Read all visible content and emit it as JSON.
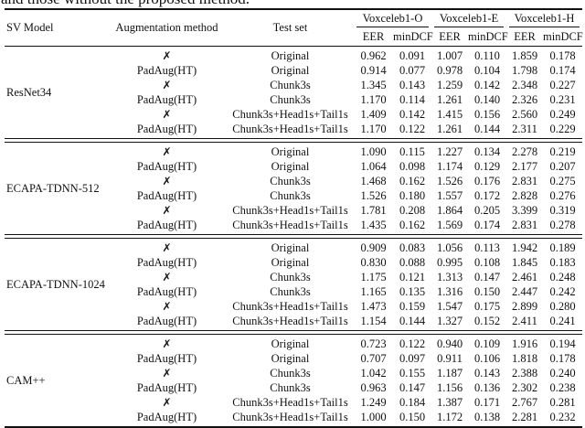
{
  "caption": "and those without the proposed method.",
  "table": {
    "headers": {
      "sv_model": "SV Model",
      "augmentation": "Augmentation method",
      "test_set": "Test set",
      "groups": [
        "Voxceleb1-O",
        "Voxceleb1-E",
        "Voxceleb1-H"
      ],
      "eer_label": "EER",
      "mindcf_label": "minDCF"
    },
    "blocks": [
      {
        "model": "ResNet34",
        "rows": [
          {
            "aug": "✗",
            "test": "Original",
            "eer_o": "0.962",
            "mindcf_o": "0.091",
            "eer_e": "1.007",
            "mindcf_e": "0.110",
            "eer_h": "1.859",
            "mindcf_h": "0.178"
          },
          {
            "aug": "PadAug(HT)",
            "test": "Original",
            "eer_o": "0.914",
            "mindcf_o": "0.077",
            "eer_e": "0.978",
            "mindcf_e": "0.104",
            "eer_h": "1.798",
            "mindcf_h": "0.174"
          },
          {
            "aug": "✗",
            "test": "Chunk3s",
            "eer_o": "1.345",
            "mindcf_o": "0.143",
            "eer_e": "1.259",
            "mindcf_e": "0.142",
            "eer_h": "2.348",
            "mindcf_h": "0.227"
          },
          {
            "aug": "PadAug(HT)",
            "test": "Chunk3s",
            "eer_o": "1.170",
            "mindcf_o": "0.114",
            "eer_e": "1.261",
            "mindcf_e": "0.140",
            "eer_h": "2.326",
            "mindcf_h": "0.231"
          },
          {
            "aug": "✗",
            "test": "Chunk3s+Head1s+Tail1s",
            "eer_o": "1.409",
            "mindcf_o": "0.142",
            "eer_e": "1.415",
            "mindcf_e": "0.156",
            "eer_h": "2.560",
            "mindcf_h": "0.249"
          },
          {
            "aug": "PadAug(HT)",
            "test": "Chunk3s+Head1s+Tail1s",
            "eer_o": "1.170",
            "mindcf_o": "0.122",
            "eer_e": "1.261",
            "mindcf_e": "0.144",
            "eer_h": "2.311",
            "mindcf_h": "0.229"
          }
        ]
      },
      {
        "model": "ECAPA-TDNN-512",
        "rows": [
          {
            "aug": "✗",
            "test": "Original",
            "eer_o": "1.090",
            "mindcf_o": "0.115",
            "eer_e": "1.227",
            "mindcf_e": "0.134",
            "eer_h": "2.278",
            "mindcf_h": "0.219"
          },
          {
            "aug": "PadAug(HT)",
            "test": "Original",
            "eer_o": "1.064",
            "mindcf_o": "0.098",
            "eer_e": "1.174",
            "mindcf_e": "0.129",
            "eer_h": "2.177",
            "mindcf_h": "0.207"
          },
          {
            "aug": "✗",
            "test": "Chunk3s",
            "eer_o": "1.468",
            "mindcf_o": "0.162",
            "eer_e": "1.526",
            "mindcf_e": "0.176",
            "eer_h": "2.831",
            "mindcf_h": "0.275"
          },
          {
            "aug": "PadAug(HT)",
            "test": "Chunk3s",
            "eer_o": "1.526",
            "mindcf_o": "0.180",
            "eer_e": "1.557",
            "mindcf_e": "0.172",
            "eer_h": "2.828",
            "mindcf_h": "0.276"
          },
          {
            "aug": "✗",
            "test": "Chunk3s+Head1s+Tail1s",
            "eer_o": "1.781",
            "mindcf_o": "0.208",
            "eer_e": "1.864",
            "mindcf_e": "0.205",
            "eer_h": "3.399",
            "mindcf_h": "0.319"
          },
          {
            "aug": "PadAug(HT)",
            "test": "Chunk3s+Head1s+Tail1s",
            "eer_o": "1.435",
            "mindcf_o": "0.162",
            "eer_e": "1.569",
            "mindcf_e": "0.174",
            "eer_h": "2.831",
            "mindcf_h": "0.278"
          }
        ]
      },
      {
        "model": "ECAPA-TDNN-1024",
        "rows": [
          {
            "aug": "✗",
            "test": "Original",
            "eer_o": "0.909",
            "mindcf_o": "0.083",
            "eer_e": "1.056",
            "mindcf_e": "0.113",
            "eer_h": "1.942",
            "mindcf_h": "0.189"
          },
          {
            "aug": "PadAug(HT)",
            "test": "Original",
            "eer_o": "0.830",
            "mindcf_o": "0.088",
            "eer_e": "0.995",
            "mindcf_e": "0.108",
            "eer_h": "1.845",
            "mindcf_h": "0.183"
          },
          {
            "aug": "✗",
            "test": "Chunk3s",
            "eer_o": "1.175",
            "mindcf_o": "0.121",
            "eer_e": "1.313",
            "mindcf_e": "0.147",
            "eer_h": "2.461",
            "mindcf_h": "0.248"
          },
          {
            "aug": "PadAug(HT)",
            "test": "Chunk3s",
            "eer_o": "1.165",
            "mindcf_o": "0.135",
            "eer_e": "1.316",
            "mindcf_e": "0.150",
            "eer_h": "2.447",
            "mindcf_h": "0.242"
          },
          {
            "aug": "✗",
            "test": "Chunk3s+Head1s+Tail1s",
            "eer_o": "1.473",
            "mindcf_o": "0.159",
            "eer_e": "1.547",
            "mindcf_e": "0.175",
            "eer_h": "2.899",
            "mindcf_h": "0.280"
          },
          {
            "aug": "PadAug(HT)",
            "test": "Chunk3s+Head1s+Tail1s",
            "eer_o": "1.154",
            "mindcf_o": "0.144",
            "eer_e": "1.327",
            "mindcf_e": "0.152",
            "eer_h": "2.411",
            "mindcf_h": "0.241"
          }
        ]
      },
      {
        "model": "CAM++",
        "rows": [
          {
            "aug": "✗",
            "test": "Original",
            "eer_o": "0.723",
            "mindcf_o": "0.122",
            "eer_e": "0.940",
            "mindcf_e": "0.109",
            "eer_h": "1.916",
            "mindcf_h": "0.194"
          },
          {
            "aug": "PadAug(HT)",
            "test": "Original",
            "eer_o": "0.707",
            "mindcf_o": "0.097",
            "eer_e": "0.911",
            "mindcf_e": "0.106",
            "eer_h": "1.818",
            "mindcf_h": "0.178"
          },
          {
            "aug": "✗",
            "test": "Chunk3s",
            "eer_o": "1.042",
            "mindcf_o": "0.155",
            "eer_e": "1.187",
            "mindcf_e": "0.143",
            "eer_h": "2.388",
            "mindcf_h": "0.240"
          },
          {
            "aug": "PadAug(HT)",
            "test": "Chunk3s",
            "eer_o": "0.963",
            "mindcf_o": "0.147",
            "eer_e": "1.156",
            "mindcf_e": "0.136",
            "eer_h": "2.302",
            "mindcf_h": "0.238"
          },
          {
            "aug": "✗",
            "test": "Chunk3s+Head1s+Tail1s",
            "eer_o": "1.249",
            "mindcf_o": "0.184",
            "eer_e": "1.387",
            "mindcf_e": "0.171",
            "eer_h": "2.767",
            "mindcf_h": "0.281"
          },
          {
            "aug": "PadAug(HT)",
            "test": "Chunk3s+Head1s+Tail1s",
            "eer_o": "1.000",
            "mindcf_o": "0.150",
            "eer_e": "1.172",
            "mindcf_e": "0.138",
            "eer_h": "2.281",
            "mindcf_h": "0.232"
          }
        ]
      }
    ]
  }
}
